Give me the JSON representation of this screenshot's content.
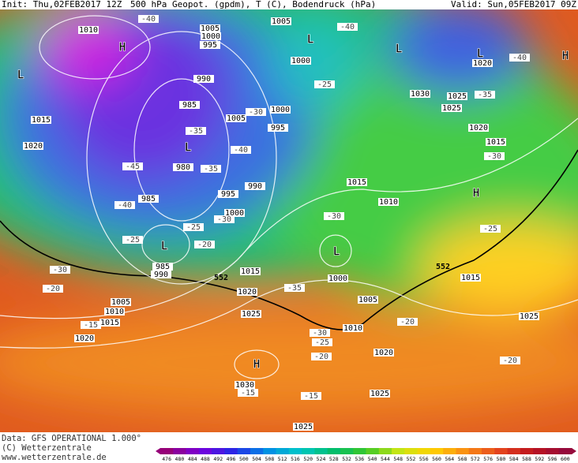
{
  "header": {
    "init": "Init: Thu,02FEB2017 12Z",
    "title": "500 hPa Geopot. (gpdm), T (C), Bodendruck (hPa)",
    "valid": "Valid: Sun,05FEB2017 09Z"
  },
  "map": {
    "isobar_labels": [
      "1010",
      "1005",
      "1000",
      "995",
      "1005",
      "1000",
      "990",
      "985",
      "1005",
      "1000",
      "995",
      "980",
      "985",
      "990",
      "995",
      "1000",
      "1015",
      "1020",
      "1030",
      "1025",
      "1025",
      "1020",
      "1015",
      "1015",
      "1010",
      "985",
      "990",
      "1015",
      "1020",
      "1025",
      "1000",
      "1005",
      "1010",
      "1020",
      "1025",
      "1015",
      "1005",
      "1010",
      "1015",
      "1020",
      "1030",
      "1025",
      "1025",
      "1020"
    ],
    "temperature_labels": [
      "-40",
      "-40",
      "-40",
      "-35",
      "-25",
      "-30",
      "-35",
      "-40",
      "-45",
      "-35",
      "-40",
      "-30",
      "-25",
      "-30",
      "-20",
      "-25",
      "-30",
      "-30",
      "-20",
      "-35",
      "-15",
      "-25",
      "-20",
      "-30",
      "-25",
      "-20",
      "-20",
      "-15",
      "-15"
    ],
    "pressure_centers": [
      "H",
      "L",
      "L",
      "L",
      "L",
      "H",
      "L",
      "H",
      "L",
      "L",
      "H"
    ],
    "contour_labels": [
      "552",
      "552"
    ]
  },
  "footer": {
    "data": "Data: GFS OPERATIONAL 1.000°",
    "copyright": "(C) Wetterzentrale",
    "url": "www.wetterzentrale.de"
  },
  "colorbar": {
    "labels": [
      476,
      480,
      484,
      488,
      492,
      496,
      500,
      504,
      508,
      512,
      516,
      520,
      524,
      528,
      532,
      536,
      540,
      544,
      548,
      552,
      556,
      560,
      564,
      568,
      572,
      576,
      580,
      584,
      588,
      592,
      596,
      600
    ]
  }
}
